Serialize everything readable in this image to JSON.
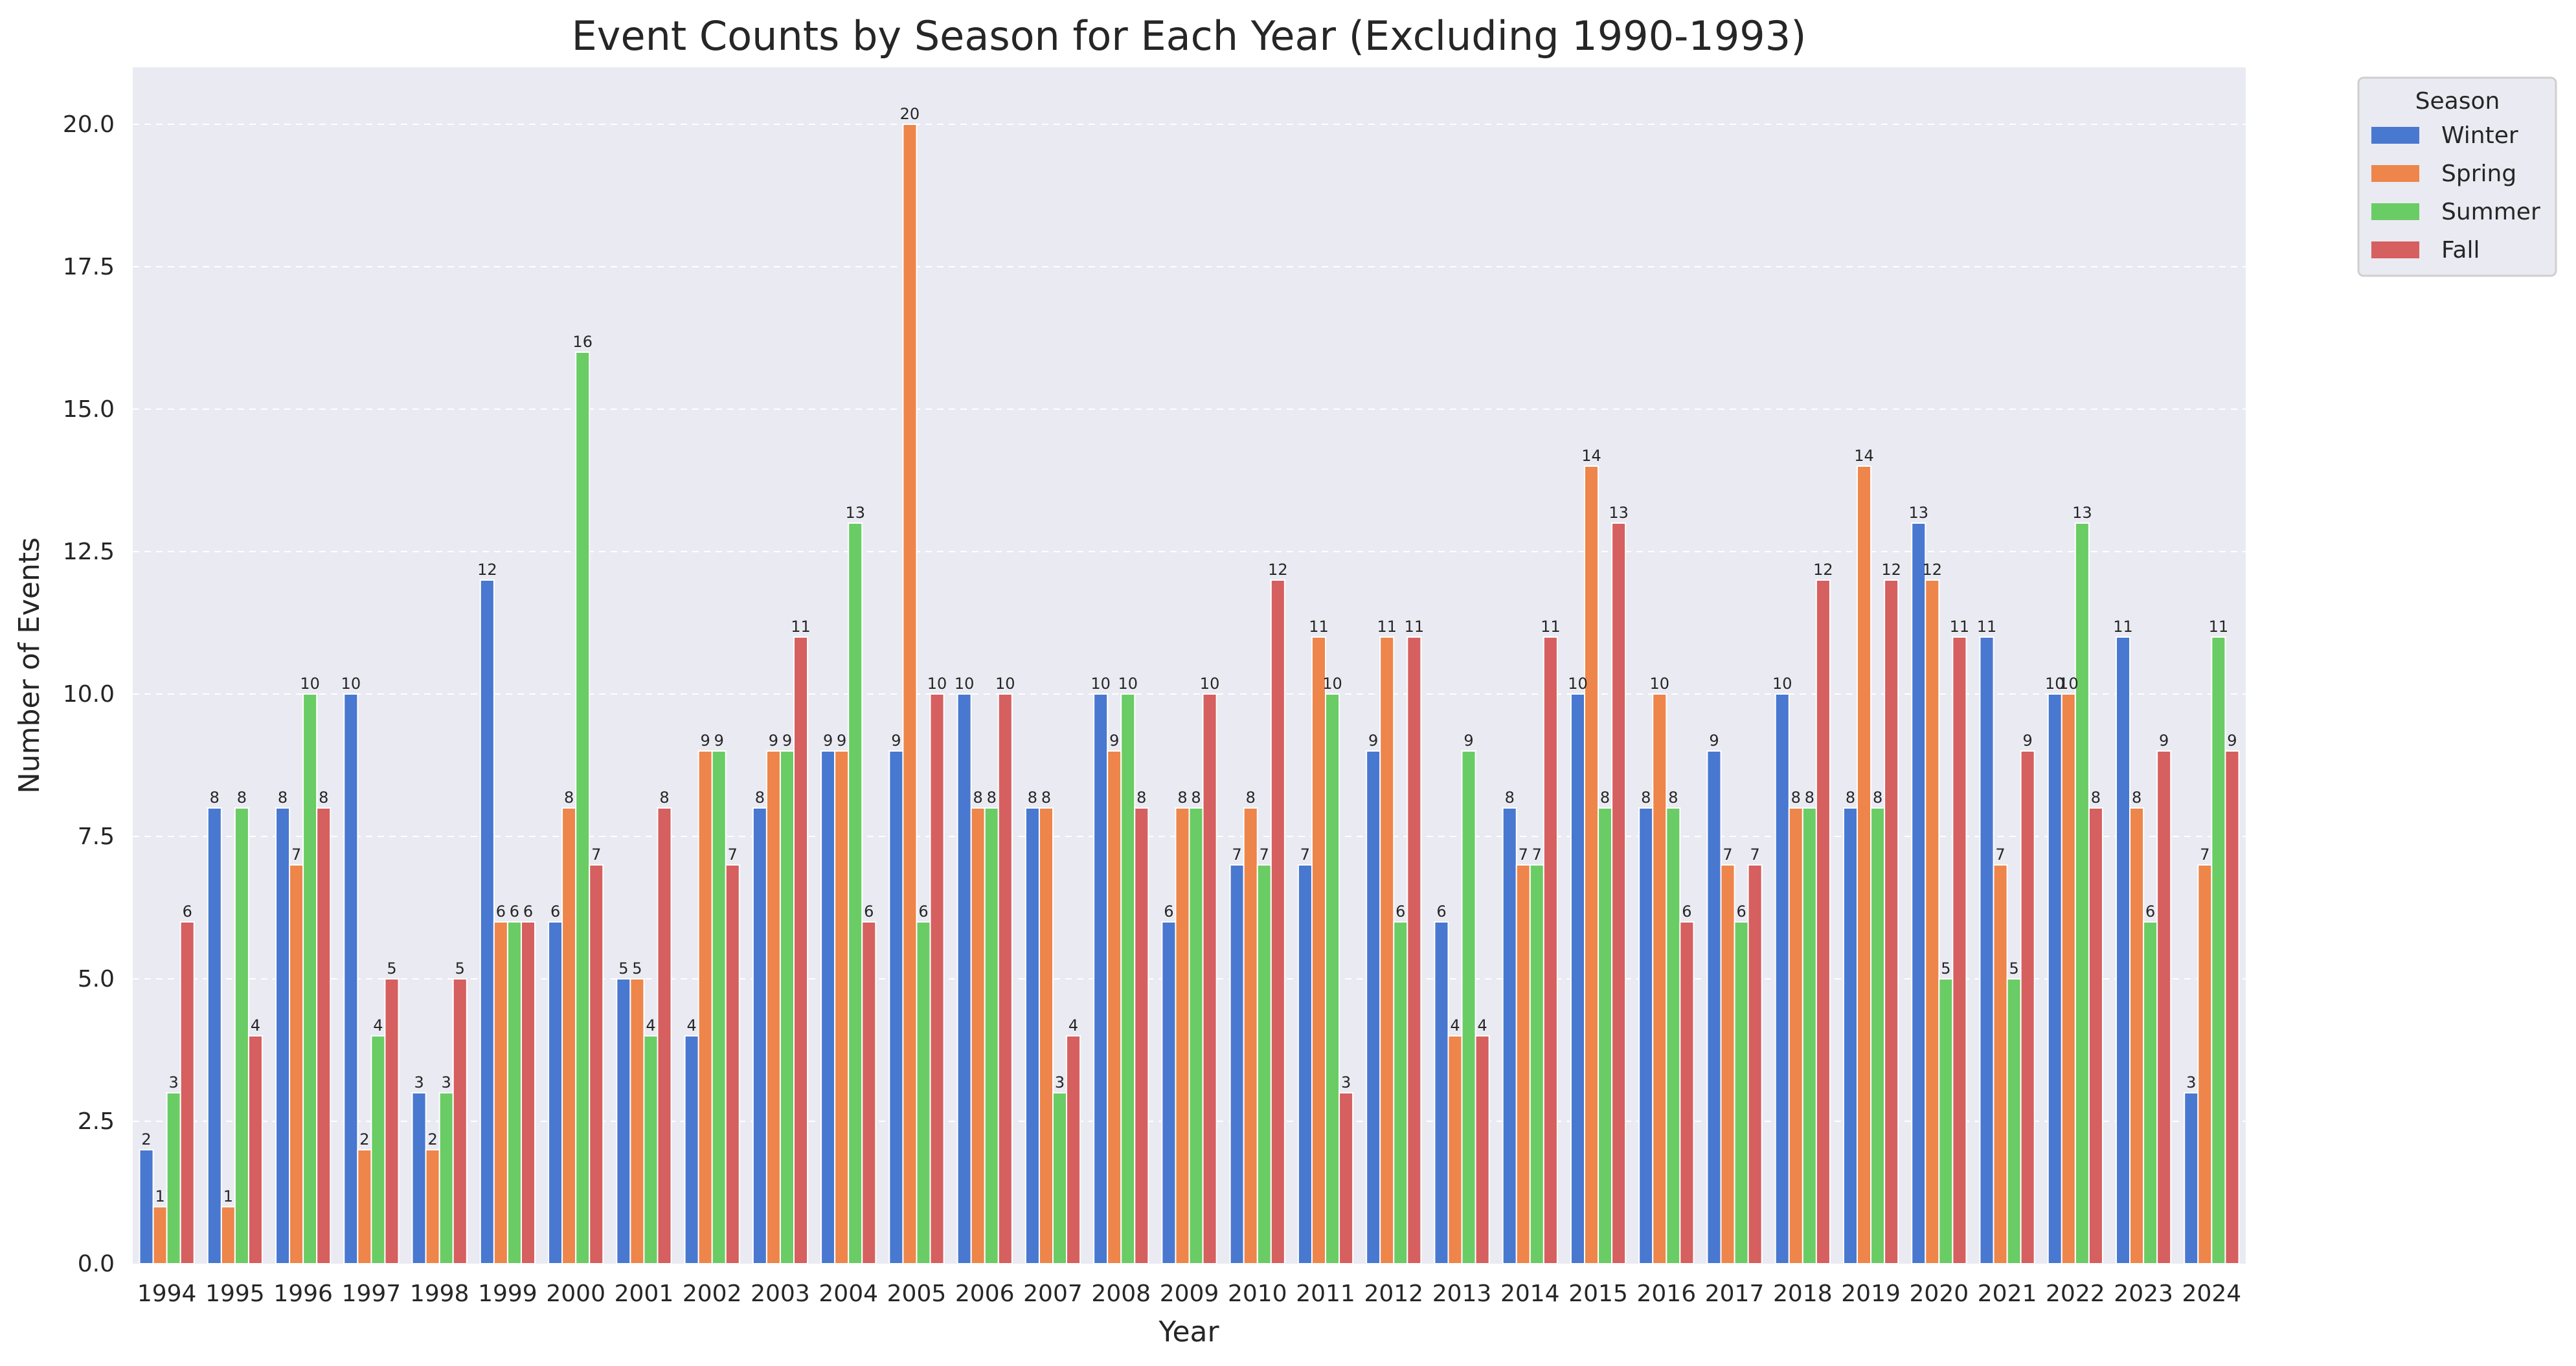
{
  "chart_data": {
    "type": "bar",
    "title": "Event Counts by Season for Each Year (Excluding 1990-1993)",
    "xlabel": "Year",
    "ylabel": "Number of Events",
    "ylim": [
      0,
      21
    ],
    "yticks": [
      "0.0",
      "2.5",
      "5.0",
      "7.5",
      "10.0",
      "12.5",
      "15.0",
      "17.5",
      "20.0"
    ],
    "grid": true,
    "legend": {
      "title": "Season",
      "placement": "outside top-right"
    },
    "categories": [
      "1994",
      "1995",
      "1996",
      "1997",
      "1998",
      "1999",
      "2000",
      "2001",
      "2002",
      "2003",
      "2004",
      "2005",
      "2006",
      "2007",
      "2008",
      "2009",
      "2010",
      "2011",
      "2012",
      "2013",
      "2014",
      "2015",
      "2016",
      "2017",
      "2018",
      "2019",
      "2020",
      "2021",
      "2022",
      "2023",
      "2024"
    ],
    "series": [
      {
        "name": "Winter",
        "color": "#4878d0",
        "values": [
          2,
          8,
          8,
          10,
          3,
          12,
          6,
          5,
          4,
          8,
          9,
          9,
          10,
          8,
          10,
          6,
          7,
          7,
          9,
          6,
          8,
          10,
          8,
          9,
          10,
          8,
          13,
          11,
          10,
          11,
          3
        ]
      },
      {
        "name": "Spring",
        "color": "#ee854a",
        "values": [
          1,
          1,
          7,
          2,
          2,
          6,
          8,
          5,
          9,
          9,
          9,
          20,
          8,
          8,
          9,
          8,
          8,
          11,
          11,
          4,
          7,
          14,
          10,
          7,
          8,
          14,
          12,
          7,
          10,
          8,
          7
        ]
      },
      {
        "name": "Summer",
        "color": "#6acc64",
        "values": [
          3,
          8,
          10,
          4,
          3,
          6,
          16,
          4,
          9,
          9,
          13,
          6,
          8,
          3,
          10,
          8,
          7,
          10,
          6,
          9,
          7,
          8,
          8,
          6,
          8,
          8,
          5,
          5,
          13,
          6,
          11
        ]
      },
      {
        "name": "Fall",
        "color": "#d65f5f",
        "values": [
          6,
          4,
          8,
          5,
          5,
          6,
          7,
          8,
          7,
          11,
          6,
          10,
          10,
          4,
          8,
          10,
          12,
          3,
          11,
          4,
          11,
          13,
          6,
          7,
          12,
          12,
          11,
          9,
          8,
          9,
          9
        ]
      }
    ]
  }
}
